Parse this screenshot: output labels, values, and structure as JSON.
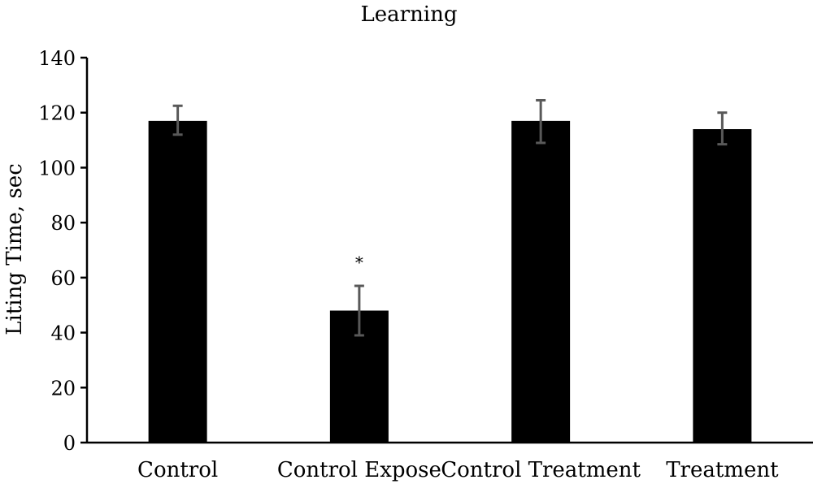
{
  "chart_data": {
    "type": "bar",
    "title": "Learning",
    "xlabel": "",
    "ylabel": "Liting Time, sec",
    "ylim": [
      0,
      140
    ],
    "yticks": [
      0,
      20,
      40,
      60,
      80,
      100,
      120,
      140
    ],
    "grid": false,
    "legend": "none",
    "categories": [
      "Control",
      "Control Expose",
      "Control Treatment",
      "Treatment"
    ],
    "series": [
      {
        "values": [
          117,
          48,
          117,
          114
        ],
        "error_low": [
          112,
          39,
          109,
          108.5
        ],
        "error_high": [
          122.5,
          57,
          124.5,
          120
        ]
      }
    ],
    "annotations": [
      {
        "category": "Control Expose",
        "text": "*"
      }
    ],
    "colors": {
      "bar": "#000000",
      "error_bar": "#595959",
      "axis": "#000000"
    }
  }
}
